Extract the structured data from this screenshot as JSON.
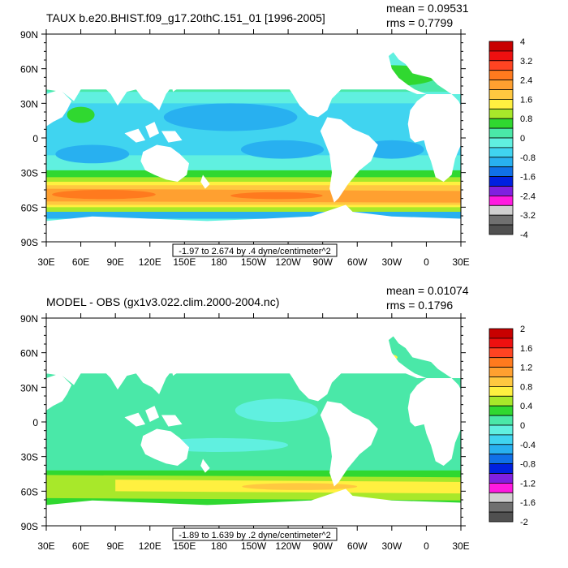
{
  "panels": [
    {
      "title": "TAUX b.e20.BHIST.f09_g17.20thC.151_01 [1996-2005]",
      "mean": "mean = 0.09531",
      "rms": "rms = 0.7799",
      "range_note": "-1.97 to 2.674 by .4 dyne/centimeter^2",
      "colorbar_labels": [
        "4",
        "3.2",
        "2.4",
        "1.6",
        "0.8",
        "0",
        "-0.8",
        "-1.6",
        "-2.4",
        "-3.2",
        "-4"
      ],
      "colorbar_colors": [
        "#c80000",
        "#ee1010",
        "#ff4422",
        "#ff7a1e",
        "#ffa030",
        "#ffc840",
        "#fff040",
        "#a8e82a",
        "#30d830",
        "#4ae8a8",
        "#60f0e0",
        "#40d4f0",
        "#28b0f0",
        "#1070e8",
        "#0020e0",
        "#8020e0",
        "#ff1ae0",
        "#d0d0d0",
        "#707070",
        "#505050"
      ]
    },
    {
      "title": "MODEL - OBS (gx1v3.022.clim.2000-2004.nc)",
      "mean": "mean = 0.01074",
      "rms": "rms = 0.1796",
      "range_note": "-1.89 to 1.639 by .2 dyne/centimeter^2",
      "colorbar_labels": [
        "2",
        "1.6",
        "1.2",
        "0.8",
        "0.4",
        "0",
        "-0.4",
        "-0.8",
        "-1.2",
        "-1.6",
        "-2"
      ],
      "colorbar_colors": [
        "#c80000",
        "#ee1010",
        "#ff4422",
        "#ff7a1e",
        "#ffa030",
        "#ffc840",
        "#fff040",
        "#a8e82a",
        "#30d830",
        "#4ae8a8",
        "#60f0e0",
        "#40d4f0",
        "#28b0f0",
        "#1070e8",
        "#0020e0",
        "#8020e0",
        "#ff1ae0",
        "#d0d0d0",
        "#707070",
        "#505050"
      ]
    }
  ],
  "lat_labels": [
    "90N",
    "60N",
    "30N",
    "0",
    "30S",
    "60S",
    "90S"
  ],
  "lon_labels": [
    "30E",
    "60E",
    "90E",
    "120E",
    "150E",
    "180",
    "150W",
    "120W",
    "90W",
    "60W",
    "30W",
    "0",
    "30E"
  ]
}
